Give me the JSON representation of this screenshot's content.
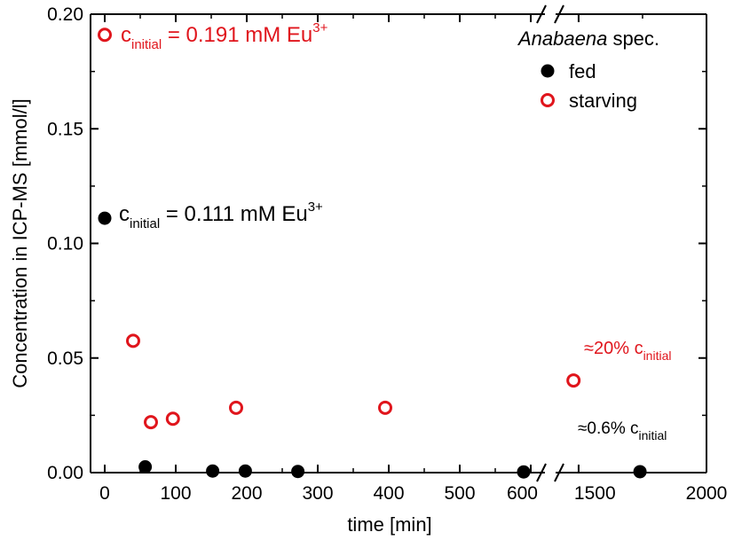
{
  "chart_data": {
    "type": "scatter",
    "xlabel": "time [min]",
    "ylabel": "Concentration in ICP-MS [mmol/l]",
    "ylim": [
      0.0,
      0.2
    ],
    "yticks": [
      "0.00",
      "0.05",
      "0.10",
      "0.15",
      "0.20"
    ],
    "x_segments": [
      {
        "range": [
          -20,
          620
        ],
        "ticks": [
          "0",
          "100",
          "200",
          "300",
          "400",
          "500",
          "600"
        ]
      },
      {
        "range": [
          1410,
          2000
        ],
        "ticks": [
          "1500",
          "2000"
        ]
      }
    ],
    "axis_break": "//",
    "legend": {
      "title_italic": "Anabaena",
      "title_rest": " spec.",
      "placement": "top-right",
      "entries": [
        {
          "label": "fed",
          "marker": "filled-circle",
          "color": "#000000"
        },
        {
          "label": "starving",
          "marker": "open-circle",
          "color": "#e0151c"
        }
      ]
    },
    "series": [
      {
        "name": "fed",
        "color": "#000000",
        "points": [
          {
            "x": 0,
            "y": 0.111
          },
          {
            "x": 57,
            "y": 0.0025
          },
          {
            "x": 152,
            "y": 0.0007
          },
          {
            "x": 198,
            "y": 0.0007
          },
          {
            "x": 272,
            "y": 0.0005
          },
          {
            "x": 590,
            "y": 0.0003
          },
          {
            "x": 1740,
            "y": 0.0004
          }
        ]
      },
      {
        "name": "starving",
        "color": "#e0151c",
        "points": [
          {
            "x": 0,
            "y": 0.191
          },
          {
            "x": 40,
            "y": 0.0575
          },
          {
            "x": 65,
            "y": 0.022
          },
          {
            "x": 96,
            "y": 0.0235
          },
          {
            "x": 185,
            "y": 0.0283
          },
          {
            "x": 395,
            "y": 0.0283
          },
          {
            "x": 1480,
            "y": 0.0402
          }
        ]
      }
    ],
    "annotations": [
      {
        "prefix": "c",
        "sub": "initial",
        "text": " = 0.191 mM Eu",
        "sup": "3+",
        "color": "#e0151c"
      },
      {
        "prefix": "c",
        "sub": "initial",
        "text": " = 0.111 mM Eu",
        "sup": "3+",
        "color": "#000000"
      },
      {
        "prefix": "≈20% c",
        "sub": "initial",
        "text": "",
        "sup": "",
        "color": "#e0151c"
      },
      {
        "prefix": "≈0.6% c",
        "sub": "initial",
        "text": "",
        "sup": "",
        "color": "#000000"
      }
    ]
  }
}
